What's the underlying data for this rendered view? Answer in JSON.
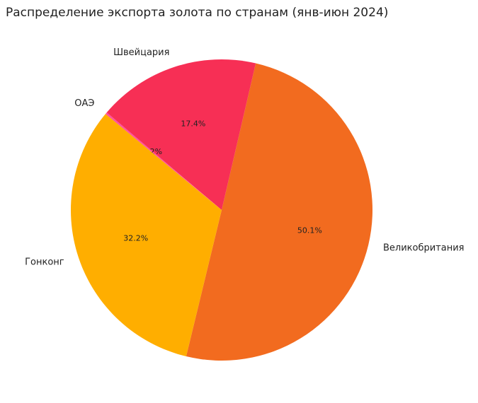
{
  "chart_data": {
    "type": "pie",
    "title": "Распределение экспорта золота по странам (янв-июн 2024)",
    "categories": [
      "Великобритания",
      "Швейцария",
      "ОАЭ",
      "Гонконг"
    ],
    "values": [
      50.1,
      17.4,
      0.2,
      32.2
    ],
    "value_labels": [
      "50.1%",
      "17.4%",
      "0.2%",
      "32.2%"
    ],
    "colors": [
      "#f26b1f",
      "#f72f55",
      "#ff4fa0",
      "#ffae00"
    ]
  }
}
